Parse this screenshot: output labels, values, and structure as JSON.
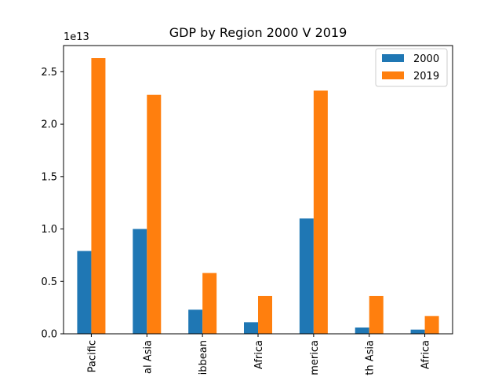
{
  "chart_data": {
    "type": "bar",
    "title": "GDP by Region 2000 V 2019",
    "xlabel": "",
    "ylabel": "",
    "y_offset_label": "1e13",
    "scale": 10000000000000.0,
    "ylim": [
      0,
      27500000000000.0
    ],
    "yticks": [
      0,
      5000000000000.0,
      10000000000000.0,
      15000000000000.0,
      20000000000000.0,
      25000000000000.0
    ],
    "ytick_labels": [
      "0.0",
      "0.5",
      "1.0",
      "1.5",
      "2.0",
      "2.5"
    ],
    "categories": [
      "Pacific",
      "al Asia",
      "ibbean",
      "Africa",
      "merica",
      "th Asia",
      "Africa"
    ],
    "series": [
      {
        "name": "2000",
        "color": "#1f77b4",
        "values": [
          7900000000000.0,
          10000000000000.0,
          2300000000000.0,
          1100000000000.0,
          11000000000000.0,
          600000000000.0,
          400000000000.0
        ]
      },
      {
        "name": "2019",
        "color": "#ff7f0e",
        "values": [
          26300000000000.0,
          22800000000000.0,
          5800000000000.0,
          3600000000000.0,
          23200000000000.0,
          3600000000000.0,
          1700000000000.0
        ]
      }
    ],
    "legend": "top-right",
    "grid": false
  }
}
